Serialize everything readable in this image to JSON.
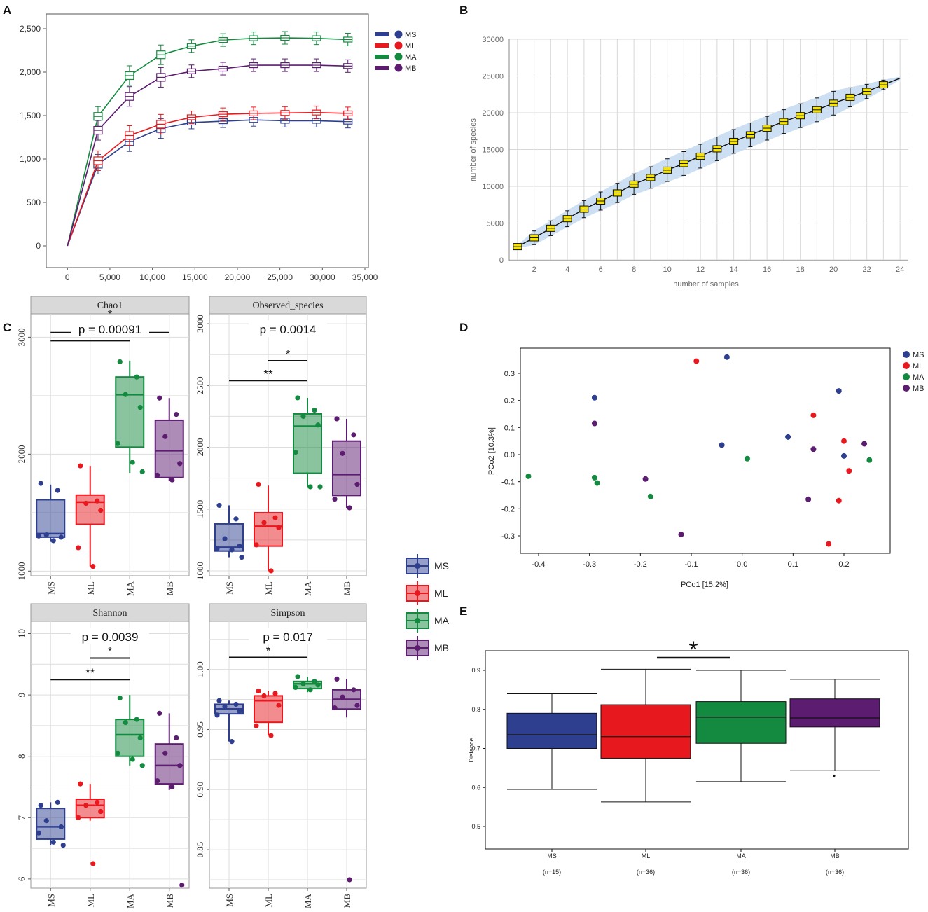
{
  "colors": {
    "MS": "#2e3f8f",
    "ML": "#e8191e",
    "MA": "#138a3f",
    "MB": "#5c1c70",
    "B_box": "#f5e300",
    "B_band": "#c6dcf2"
  },
  "chart_data": [
    {
      "id": "A",
      "letter": "A",
      "type": "line",
      "title": "",
      "xlabel": "",
      "ylabel": "",
      "xlim": [
        -2000,
        35000
      ],
      "ylim": [
        -230,
        2600
      ],
      "xticks": [
        0,
        5000,
        10000,
        15000,
        20000,
        25000,
        30000,
        35000
      ],
      "xtick_labels": [
        "0",
        "5,000",
        "10,000",
        "15,000",
        "20,000",
        "25,000",
        "30,000",
        "35,000"
      ],
      "yticks": [
        0,
        500,
        1000,
        1500,
        2000,
        2500
      ],
      "ytick_labels": [
        "0",
        "500",
        "1,000",
        "1,500",
        "2,000",
        "2,500"
      ],
      "x": [
        0,
        3600,
        7300,
        11000,
        14600,
        18300,
        21900,
        25600,
        29300,
        33000
      ],
      "series": [
        {
          "name": "MS",
          "values": [
            0,
            940,
            1200,
            1350,
            1420,
            1435,
            1450,
            1440,
            1440,
            1430
          ]
        },
        {
          "name": "ML",
          "values": [
            0,
            980,
            1270,
            1400,
            1480,
            1515,
            1525,
            1530,
            1535,
            1525
          ]
        },
        {
          "name": "MA",
          "values": [
            0,
            1490,
            1960,
            2200,
            2300,
            2370,
            2390,
            2395,
            2390,
            2375
          ]
        },
        {
          "name": "MB",
          "values": [
            0,
            1330,
            1720,
            1940,
            2010,
            2040,
            2080,
            2080,
            2080,
            2070
          ]
        }
      ],
      "legend": [
        "MS",
        "ML",
        "MA",
        "MB"
      ]
    },
    {
      "id": "B",
      "letter": "B",
      "type": "line",
      "title": "",
      "xlabel": "number of samples",
      "ylabel": "number of species",
      "xlim": [
        0.5,
        24.5
      ],
      "ylim": [
        0,
        30000
      ],
      "xticks": [
        2,
        4,
        6,
        8,
        10,
        12,
        14,
        16,
        18,
        20,
        22,
        24
      ],
      "yticks": [
        0,
        5000,
        10000,
        15000,
        20000,
        25000,
        30000
      ],
      "x": [
        1,
        2,
        3,
        4,
        5,
        6,
        7,
        8,
        9,
        10,
        11,
        12,
        13,
        14,
        15,
        16,
        17,
        18,
        19,
        20,
        21,
        22,
        23,
        24
      ],
      "values": [
        1800,
        3000,
        4300,
        5600,
        6900,
        8000,
        9100,
        10300,
        11200,
        12200,
        13100,
        14100,
        15100,
        16100,
        17000,
        17900,
        18800,
        19600,
        20400,
        21300,
        22100,
        22900,
        23800,
        24700
      ]
    },
    {
      "id": "C_chao1",
      "type": "box",
      "strip": "Chao1",
      "pval": "p = 0.00091",
      "ylim": [
        960,
        3200
      ],
      "yticks": [
        1000,
        2000,
        3000
      ],
      "categories": [
        "MS",
        "ML",
        "MA",
        "MB"
      ],
      "boxes": [
        {
          "group": "MS",
          "q1": 1290,
          "median": 1320,
          "q3": 1610,
          "lo": 1250,
          "hi": 1740
        },
        {
          "group": "ML",
          "q1": 1400,
          "median": 1590,
          "q3": 1650,
          "lo": 1040,
          "hi": 1900
        },
        {
          "group": "MA",
          "q1": 2060,
          "median": 2510,
          "q3": 2660,
          "lo": 1840,
          "hi": 2800
        },
        {
          "group": "MB",
          "q1": 1800,
          "median": 2030,
          "q3": 2290,
          "lo": 1770,
          "hi": 2480
        }
      ],
      "points": [
        {
          "group": "MS",
          "values": [
            1750,
            1690,
            1310,
            1290,
            1300,
            1260
          ]
        },
        {
          "group": "ML",
          "values": [
            1900,
            1600,
            1580,
            1520,
            1200,
            1040
          ]
        },
        {
          "group": "MA",
          "values": [
            2790,
            2660,
            2510,
            2400,
            2090,
            1930,
            1850
          ]
        },
        {
          "group": "MB",
          "values": [
            2480,
            2340,
            2150,
            1920,
            1820,
            1780
          ]
        }
      ],
      "brackets": [
        {
          "from": "ML",
          "to": "MA",
          "label": "*",
          "y": 3140
        },
        {
          "from": "MS",
          "to": "MB",
          "label": "*",
          "y": 3040
        },
        {
          "from": "MS",
          "to": "MA",
          "label": "**",
          "y": 2970
        }
      ]
    },
    {
      "id": "C_observed",
      "type": "box",
      "strip": "Observed_species",
      "pval": "p = 0.0014",
      "ylim": [
        960,
        3080
      ],
      "yticks": [
        1000,
        1500,
        2000,
        2500,
        3000
      ],
      "categories": [
        "MS",
        "ML",
        "MA",
        "MB"
      ],
      "boxes": [
        {
          "group": "MS",
          "q1": 1160,
          "median": 1190,
          "q3": 1380,
          "lo": 1110,
          "hi": 1530
        },
        {
          "group": "ML",
          "q1": 1200,
          "median": 1360,
          "q3": 1470,
          "lo": 1000,
          "hi": 1690
        },
        {
          "group": "MA",
          "q1": 1790,
          "median": 2170,
          "q3": 2270,
          "lo": 1680,
          "hi": 2400
        },
        {
          "group": "MB",
          "q1": 1610,
          "median": 1780,
          "q3": 2050,
          "lo": 1510,
          "hi": 2230
        }
      ],
      "points": [
        {
          "group": "MS",
          "values": [
            1530,
            1420,
            1260,
            1200,
            1180,
            1170,
            1110
          ]
        },
        {
          "group": "ML",
          "values": [
            1700,
            1430,
            1390,
            1350,
            1210,
            1000
          ]
        },
        {
          "group": "MA",
          "values": [
            2400,
            2300,
            2250,
            2180,
            1960,
            1680,
            1680
          ]
        },
        {
          "group": "MB",
          "values": [
            2230,
            2100,
            1950,
            1700,
            1580,
            1510
          ]
        }
      ],
      "brackets": [
        {
          "from": "ML",
          "to": "MA",
          "label": "*",
          "y": 2700
        },
        {
          "from": "MS",
          "to": "MA",
          "label": "**",
          "y": 2540
        }
      ]
    },
    {
      "id": "C_shannon",
      "type": "box",
      "strip": "Shannon",
      "pval": "p = 0.0039",
      "ylim": [
        5.85,
        10.2
      ],
      "yticks": [
        6,
        7,
        8,
        9,
        10
      ],
      "categories": [
        "MS",
        "ML",
        "MA",
        "MB"
      ],
      "boxes": [
        {
          "group": "MS",
          "q1": 6.65,
          "median": 6.85,
          "q3": 7.15,
          "lo": 6.55,
          "hi": 7.25
        },
        {
          "group": "ML",
          "q1": 7.0,
          "median": 7.2,
          "q3": 7.3,
          "lo": 6.95,
          "hi": 7.55
        },
        {
          "group": "MA",
          "q1": 8.0,
          "median": 8.35,
          "q3": 8.6,
          "lo": 7.85,
          "hi": 9.0
        },
        {
          "group": "MB",
          "q1": 7.55,
          "median": 7.85,
          "q3": 8.2,
          "lo": 7.45,
          "hi": 8.7
        }
      ],
      "points": [
        {
          "group": "MS",
          "values": [
            7.2,
            7.25,
            6.95,
            6.85,
            6.75,
            6.6,
            6.55
          ]
        },
        {
          "group": "ML",
          "values": [
            7.55,
            7.25,
            7.2,
            7.1,
            7.0,
            6.25
          ]
        },
        {
          "group": "MA",
          "values": [
            8.95,
            8.6,
            8.55,
            8.3,
            8.05,
            7.95,
            7.85
          ]
        },
        {
          "group": "MB",
          "values": [
            8.7,
            8.3,
            8.05,
            7.85,
            7.6,
            7.5,
            5.9
          ]
        }
      ],
      "brackets": [
        {
          "from": "ML",
          "to": "MA",
          "label": "*",
          "y": 9.6
        },
        {
          "from": "MS",
          "to": "MA",
          "label": "**",
          "y": 9.25
        }
      ]
    },
    {
      "id": "C_simpson",
      "type": "box",
      "strip": "Simpson",
      "pval": "p = 0.017",
      "ylim": [
        0.818,
        1.04
      ],
      "yticks": [
        0.85,
        0.9,
        0.95,
        1.0
      ],
      "ytick_labels": [
        "0.85",
        "0.90",
        "0.95",
        "1.00"
      ],
      "categories": [
        "MS",
        "ML",
        "MA",
        "MB"
      ],
      "boxes": [
        {
          "group": "MS",
          "q1": 0.963,
          "median": 0.967,
          "q3": 0.971,
          "lo": 0.94,
          "hi": 0.974
        },
        {
          "group": "ML",
          "q1": 0.956,
          "median": 0.974,
          "q3": 0.978,
          "lo": 0.945,
          "hi": 0.982
        },
        {
          "group": "MA",
          "q1": 0.984,
          "median": 0.988,
          "q3": 0.99,
          "lo": 0.981,
          "hi": 0.994
        },
        {
          "group": "MB",
          "q1": 0.967,
          "median": 0.975,
          "q3": 0.983,
          "lo": 0.96,
          "hi": 0.992
        }
      ],
      "points": [
        {
          "group": "MS",
          "values": [
            0.974,
            0.971,
            0.969,
            0.965,
            0.962,
            0.94
          ]
        },
        {
          "group": "ML",
          "values": [
            0.982,
            0.98,
            0.978,
            0.97,
            0.953,
            0.945
          ]
        },
        {
          "group": "MA",
          "values": [
            0.994,
            0.99,
            0.988,
            0.987,
            0.985,
            0.983
          ]
        },
        {
          "group": "MB",
          "values": [
            0.992,
            0.983,
            0.977,
            0.97,
            0.968,
            0.825
          ]
        }
      ],
      "brackets": [
        {
          "from": "MS",
          "to": "MA",
          "label": "*",
          "y": 1.01
        }
      ]
    },
    {
      "id": "D",
      "letter": "D",
      "type": "scatter",
      "xlabel": "PCo1 [15.2%]",
      "ylabel": "PCo2 [10.3%]",
      "xlim": [
        -0.47,
        0.3
      ],
      "ylim": [
        -0.365,
        0.375
      ],
      "xticks": [
        -0.4,
        -0.3,
        -0.2,
        -0.1,
        0.0,
        0.1,
        0.2
      ],
      "yticks": [
        -0.3,
        -0.2,
        -0.1,
        0.0,
        0.1,
        0.2,
        0.3
      ],
      "legend": [
        "MS",
        "ML",
        "MA",
        "MB"
      ],
      "points": [
        {
          "group": "MS",
          "x": -0.29,
          "y": 0.21
        },
        {
          "group": "MS",
          "x": -0.03,
          "y": 0.36
        },
        {
          "group": "MS",
          "x": -0.04,
          "y": 0.035
        },
        {
          "group": "MS",
          "x": 0.09,
          "y": 0.065
        },
        {
          "group": "MS",
          "x": 0.19,
          "y": 0.235
        },
        {
          "group": "MS",
          "x": 0.2,
          "y": -0.005
        },
        {
          "group": "ML",
          "x": -0.09,
          "y": 0.345
        },
        {
          "group": "ML",
          "x": 0.14,
          "y": 0.145
        },
        {
          "group": "ML",
          "x": 0.2,
          "y": 0.05
        },
        {
          "group": "ML",
          "x": 0.21,
          "y": -0.06
        },
        {
          "group": "ML",
          "x": 0.19,
          "y": -0.17
        },
        {
          "group": "ML",
          "x": 0.17,
          "y": -0.33
        },
        {
          "group": "MA",
          "x": -0.42,
          "y": -0.08
        },
        {
          "group": "MA",
          "x": -0.29,
          "y": -0.085
        },
        {
          "group": "MA",
          "x": -0.285,
          "y": -0.105
        },
        {
          "group": "MA",
          "x": -0.18,
          "y": -0.155
        },
        {
          "group": "MA",
          "x": 0.01,
          "y": -0.015
        },
        {
          "group": "MA",
          "x": 0.25,
          "y": -0.02
        },
        {
          "group": "MB",
          "x": -0.29,
          "y": 0.115
        },
        {
          "group": "MB",
          "x": -0.19,
          "y": -0.09
        },
        {
          "group": "MB",
          "x": -0.12,
          "y": -0.295
        },
        {
          "group": "MB",
          "x": 0.14,
          "y": 0.02
        },
        {
          "group": "MB",
          "x": 0.13,
          "y": -0.165
        },
        {
          "group": "MB",
          "x": 0.24,
          "y": 0.04
        }
      ]
    },
    {
      "id": "E",
      "letter": "E",
      "type": "box",
      "ylabel": "Distance",
      "ylim": [
        0.44,
        0.945
      ],
      "yticks": [
        0.5,
        0.6,
        0.7,
        0.8,
        0.9
      ],
      "categories": [
        "MS",
        "ML",
        "MA",
        "MB"
      ],
      "category_sub": [
        "(n=15)",
        "(n=36)",
        "(n=36)",
        "(n=36)"
      ],
      "boxes": [
        {
          "group": "MS",
          "q1": 0.7,
          "median": 0.735,
          "q3": 0.79,
          "lo": 0.595,
          "hi": 0.84
        },
        {
          "group": "ML",
          "q1": 0.675,
          "median": 0.73,
          "q3": 0.812,
          "lo": 0.563,
          "hi": 0.903
        },
        {
          "group": "MA",
          "q1": 0.713,
          "median": 0.78,
          "q3": 0.82,
          "lo": 0.615,
          "hi": 0.9
        },
        {
          "group": "MB",
          "q1": 0.755,
          "median": 0.778,
          "q3": 0.827,
          "lo": 0.643,
          "hi": 0.877
        }
      ],
      "outliers": [
        {
          "group": "MB",
          "value": 0.63
        }
      ],
      "brackets": [
        {
          "from": "ML",
          "to": "MA",
          "label": "*"
        }
      ]
    }
  ],
  "legend_C": {
    "items": [
      "MS",
      "ML",
      "MA",
      "MB"
    ]
  }
}
